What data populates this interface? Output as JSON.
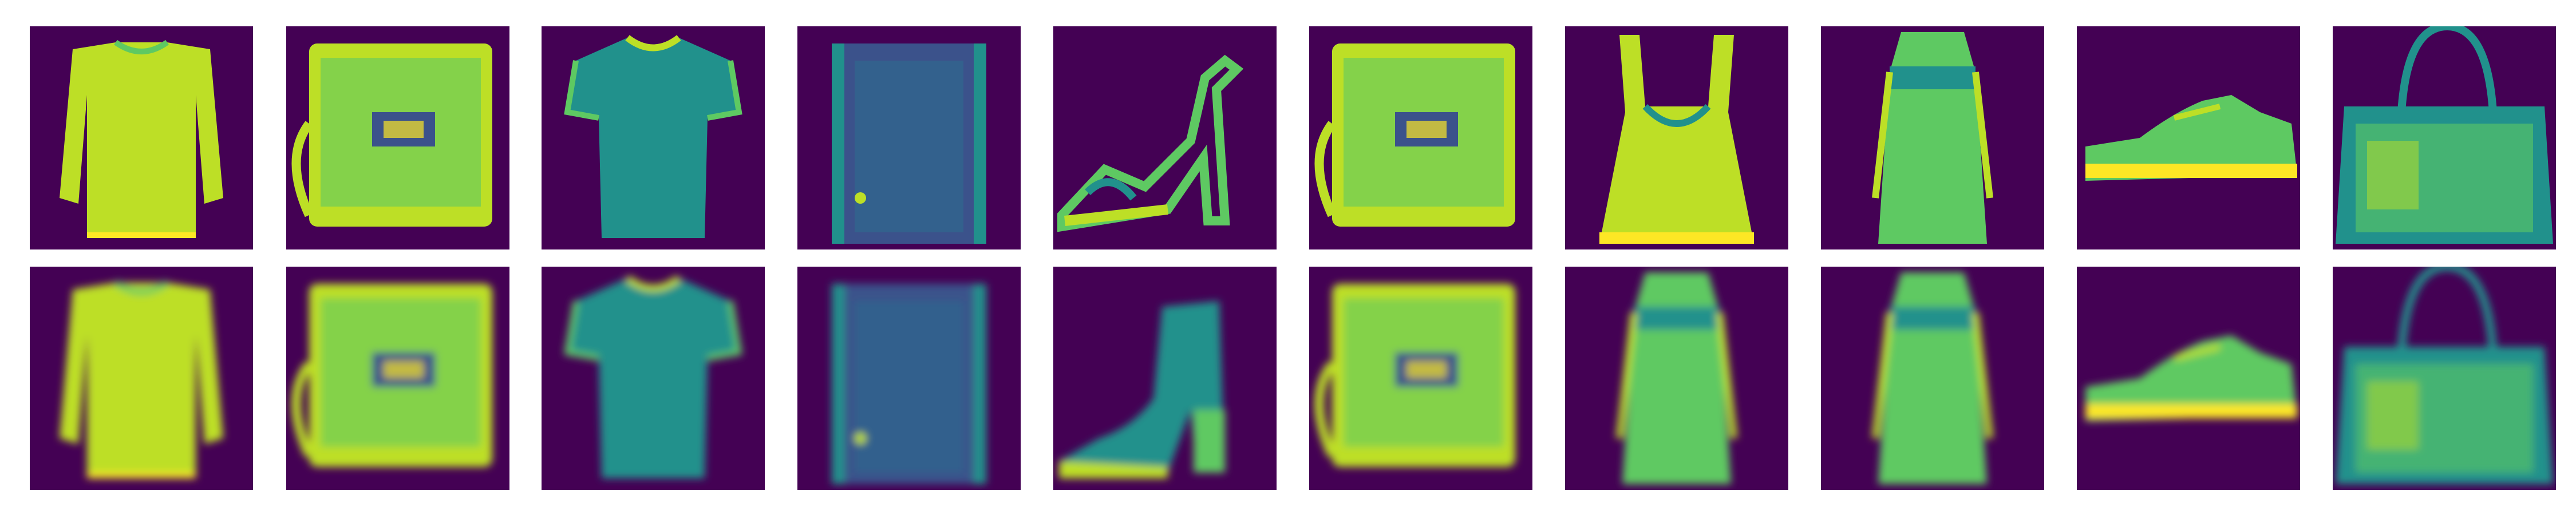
{
  "figure": {
    "rows": [
      {
        "row": "original",
        "items": [
          "long-sleeve-top",
          "bag",
          "t-shirt",
          "coat",
          "sandal",
          "bag",
          "tank-top",
          "dress",
          "sneaker",
          "handbag"
        ]
      },
      {
        "row": "reconstruction",
        "items": [
          "long-sleeve-top",
          "bag",
          "t-shirt",
          "coat",
          "ankle-boot",
          "bag",
          "dress",
          "dress",
          "sneaker",
          "handbag"
        ]
      }
    ],
    "colors": {
      "background": "#440154",
      "low": "#3b528b",
      "mid": "#21918c",
      "mid_high": "#5ec962",
      "high": "#bddf26",
      "peak": "#fde725"
    }
  }
}
